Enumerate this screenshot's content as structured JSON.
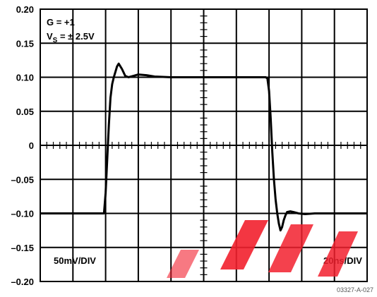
{
  "chart_data": {
    "type": "line",
    "title": "",
    "xlabel": "",
    "ylabel": "",
    "ylim": [
      -0.2,
      0.2
    ],
    "xlim": [
      0,
      200
    ],
    "y_ticks": [
      "0.20",
      "0.15",
      "0.10",
      "0.05",
      "0",
      "–0.05",
      "–0.10",
      "–0.15",
      "–0.20"
    ],
    "grid": true,
    "annotations": {
      "gain": "G = +1",
      "supply_main": "V",
      "supply_sub": "S",
      "supply_rest": " = ± 2.5V",
      "vertical_scale": "50mV/DIV",
      "horizontal_scale": "20ns/DIV",
      "figure_code": "03327-A-027"
    },
    "series": [
      {
        "x": [
          0,
          39.0,
          40.0,
          41.0,
          42.0,
          43.0,
          44.0,
          45.0,
          46.0,
          47.0,
          48.0,
          50.0,
          52.0,
          54.0,
          57.0,
          60.0,
          65.0,
          70.0,
          80.0,
          100.0,
          120.0,
          138.0,
          139.0,
          140.0,
          141.0,
          142.0,
          143.0,
          144.0,
          145.0,
          146.0,
          147.0,
          148.0,
          149.0,
          150.0,
          151.0,
          153.0,
          155.0,
          158.0,
          162.0,
          168.0,
          180.0,
          190.0,
          200.0
        ],
        "y": [
          -0.1,
          -0.1,
          -0.07,
          -0.02,
          0.03,
          0.07,
          0.09,
          0.1,
          0.108,
          0.116,
          0.12,
          0.112,
          0.102,
          0.1,
          0.102,
          0.104,
          0.103,
          0.101,
          0.1,
          0.1,
          0.1,
          0.1,
          0.098,
          0.08,
          0.04,
          -0.01,
          -0.05,
          -0.08,
          -0.1,
          -0.115,
          -0.125,
          -0.12,
          -0.11,
          -0.103,
          -0.098,
          -0.097,
          -0.098,
          -0.1,
          -0.101,
          -0.1,
          -0.1,
          -0.1,
          -0.1
        ]
      }
    ]
  }
}
